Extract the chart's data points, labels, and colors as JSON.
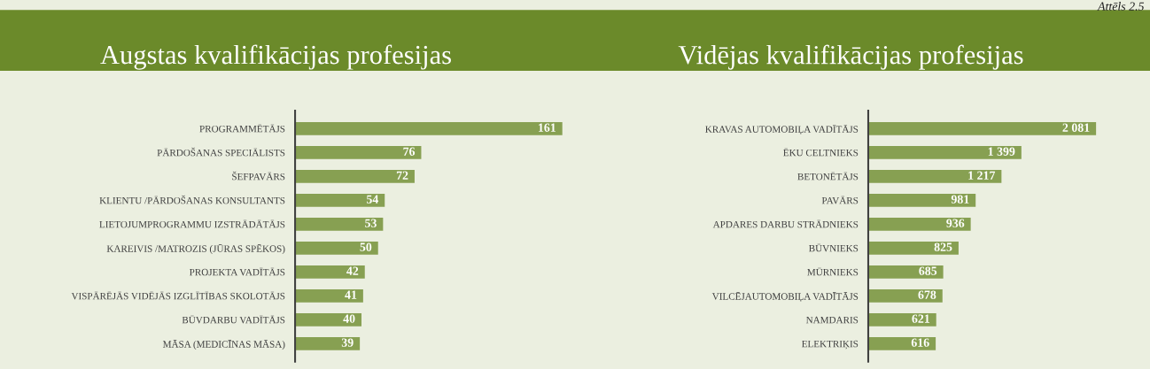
{
  "chart_data": [
    {
      "type": "bar",
      "orientation": "horizontal",
      "title": "Augstas kvalifikācijas profesijas",
      "annotations": [
        "Attēls 2.5"
      ],
      "color": "#87a052",
      "data_labels": true,
      "categories": [
        "PROGRAMMĒTĀJS",
        "PĀRDOŠANAS SPECIĀLISTS",
        "ŠEFPAVĀRS",
        "KLIENTU /PĀRDOŠANAS KONSULTANTS",
        "LIETOJUMPROGRAMMU IZSTRĀDĀTĀJS",
        "KAREIVIS /MATROZIS (JŪRAS SPĒKOS)",
        "PROJEKTA VADĪTĀJS",
        "VISPĀRĒJĀS VIDĒJĀS IZGLĪTĪBAS SKOLOTĀJS",
        "BŪVDARBU VADĪTĀJS",
        "MĀSA (MEDICĪNAS MĀSA)"
      ],
      "values": [
        161,
        76,
        72,
        54,
        53,
        50,
        42,
        41,
        40,
        39
      ]
    },
    {
      "type": "bar",
      "orientation": "horizontal",
      "title": "Vidējas kvalifikācijas profesijas",
      "color": "#87a052",
      "categories": [
        "KRAVAS AUTOMOBIĻA VADĪTĀJS",
        "ĒKU CELTNIEKS",
        "BETONĒTĀJS",
        "PAVĀRS",
        "APDARES DARBU STRĀDNIEKS",
        "BŪVNIEKS",
        "MŪRNIEKS",
        "VILCĒJAUTOMOBIĻA VADĪTĀJS",
        "NAMDARIS",
        "ELEKTRIĶIS"
      ],
      "values": [
        2081,
        1399,
        1217,
        981,
        936,
        825,
        685,
        678,
        621,
        616
      ],
      "value_labels": [
        "2 081",
        "1 399",
        "1 217",
        "981",
        "936",
        "825",
        "685",
        "678",
        "621",
        "616"
      ]
    }
  ]
}
